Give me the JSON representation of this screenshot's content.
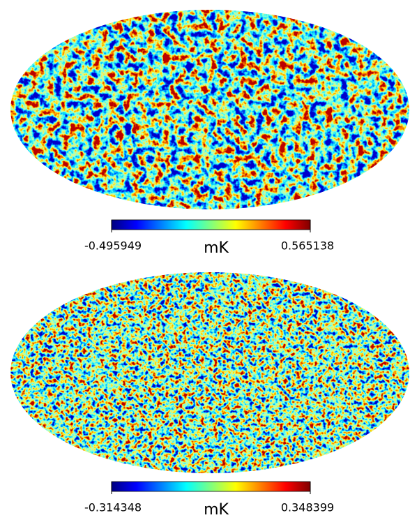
{
  "chart_data": [
    {
      "type": "mollweide",
      "colormap": "jet",
      "colorbar_label": "mK",
      "clim": [
        -0.495949,
        0.565138
      ]
    },
    {
      "type": "mollweide",
      "colormap": "jet",
      "colorbar_label": "mK",
      "clim": [
        -0.314348,
        0.348399
      ]
    }
  ]
}
